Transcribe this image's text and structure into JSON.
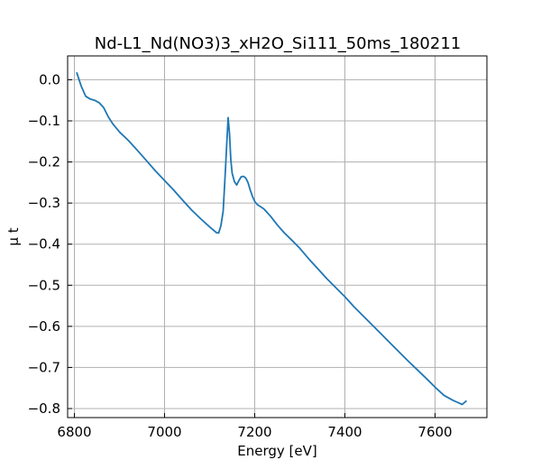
{
  "chart_data": {
    "type": "line",
    "title": "Nd-L1_Nd(NO3)3_xH2O_Si111_50ms_180211",
    "xlabel": "Energy [eV]",
    "ylabel": "μ t",
    "xlim": [
      6785,
      7715
    ],
    "ylim": [
      -0.822,
      0.058
    ],
    "xticks": [
      6800,
      7000,
      7200,
      7400,
      7600
    ],
    "yticks": [
      0.0,
      -0.1,
      -0.2,
      -0.3,
      -0.4,
      -0.5,
      -0.6,
      -0.7,
      -0.8
    ],
    "xtick_labels": [
      "6800",
      "7000",
      "7200",
      "7400",
      "7600"
    ],
    "ytick_labels": [
      "0.0",
      "−0.1",
      "−0.2",
      "−0.3",
      "−0.4",
      "−0.5",
      "−0.6",
      "−0.7",
      "−0.8"
    ],
    "grid": true,
    "line_color": "#1f77b4",
    "series": [
      {
        "x": [
          6805,
          6815,
          6825,
          6835,
          6845,
          6855,
          6865,
          6875,
          6885,
          6900,
          6920,
          6940,
          6960,
          6980,
          7000,
          7020,
          7040,
          7060,
          7080,
          7100,
          7115,
          7120,
          7125,
          7130,
          7135,
          7138,
          7141,
          7144,
          7147,
          7150,
          7155,
          7160,
          7165,
          7170,
          7175,
          7180,
          7185,
          7190,
          7195,
          7200,
          7205,
          7210,
          7220,
          7235,
          7250,
          7265,
          7280,
          7300,
          7320,
          7340,
          7360,
          7380,
          7400,
          7420,
          7440,
          7460,
          7480,
          7500,
          7520,
          7540,
          7560,
          7580,
          7600,
          7620,
          7640,
          7660,
          7670
        ],
        "y": [
          0.018,
          -0.015,
          -0.04,
          -0.047,
          -0.05,
          -0.056,
          -0.068,
          -0.09,
          -0.107,
          -0.127,
          -0.148,
          -0.172,
          -0.197,
          -0.222,
          -0.245,
          -0.268,
          -0.293,
          -0.317,
          -0.338,
          -0.358,
          -0.372,
          -0.373,
          -0.355,
          -0.32,
          -0.22,
          -0.155,
          -0.092,
          -0.13,
          -0.195,
          -0.228,
          -0.248,
          -0.256,
          -0.245,
          -0.236,
          -0.235,
          -0.239,
          -0.25,
          -0.268,
          -0.284,
          -0.296,
          -0.303,
          -0.307,
          -0.314,
          -0.332,
          -0.353,
          -0.372,
          -0.388,
          -0.41,
          -0.436,
          -0.46,
          -0.484,
          -0.506,
          -0.528,
          -0.552,
          -0.574,
          -0.596,
          -0.618,
          -0.64,
          -0.662,
          -0.684,
          -0.705,
          -0.726,
          -0.748,
          -0.768,
          -0.78,
          -0.79,
          -0.781
        ]
      }
    ]
  }
}
